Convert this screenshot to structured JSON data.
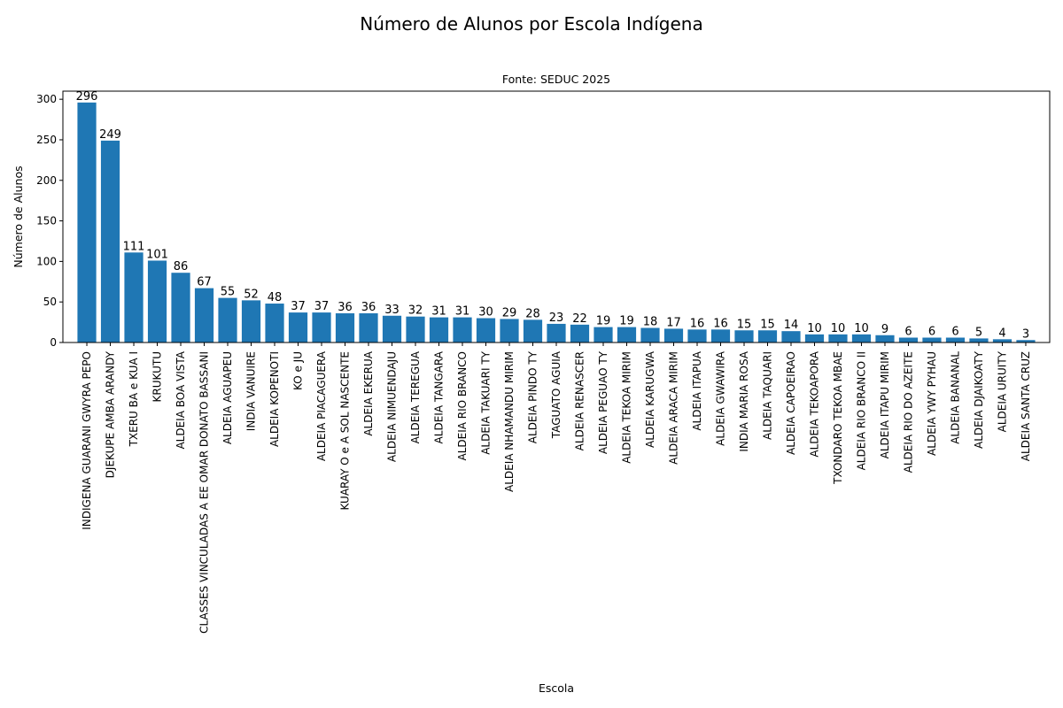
{
  "chart_data": {
    "type": "bar",
    "title": "Número de Alunos por Escola Indígena",
    "subtitle": "Fonte: SEDUC 2025",
    "xlabel": "Escola",
    "ylabel": "Número de Alunos",
    "ylim": [
      0,
      310
    ],
    "yticks": [
      0,
      50,
      100,
      150,
      200,
      250,
      300
    ],
    "grid": false,
    "bar_color": "#1f77b4",
    "categories": [
      "INDIGENA GUARANI GWYRA PEPO",
      "DJEKUPE AMBA ARANDY",
      "TXERU BA  e KUA  I",
      "KRUKUTU",
      "ALDEIA BOA VISTA",
      "CLASSES VINCULADAS A EE OMAR DONATO BASSANI",
      "ALDEIA AGUAPEU",
      "INDIA VANUIRE",
      "ALDEIA KOPENOTI",
      "KO e JU",
      "ALDEIA PIACAGUERA",
      "KUARAY O e A SOL NASCENTE",
      "ALDEIA EKERUA",
      "ALDEIA NIMUENDAJU",
      "ALDEIA TEREGUA",
      "ALDEIA TANGARA",
      "ALDEIA RIO BRANCO",
      "ALDEIA TAKUARI TY",
      "ALDEIA NHAMANDU MIRIM",
      "ALDEIA PINDO TY",
      "TAGUATO AGUIA",
      "ALDEIA RENASCER",
      "ALDEIA PEGUAO TY",
      "ALDEIA TEKOA MIRIM",
      "ALDEIA KARUGWA",
      "ALDEIA ARACA MIRIM",
      "ALDEIA ITAPUA",
      "ALDEIA GWAWIRA",
      "INDIA MARIA ROSA",
      "ALDEIA TAQUARI",
      "ALDEIA CAPOEIRAO",
      "ALDEIA TEKOAPORA",
      "TXONDARO TEKOA  MBAE",
      "ALDEIA RIO BRANCO II",
      "ALDEIA ITAPU MIRIM",
      "ALDEIA RIO DO AZEITE",
      "ALDEIA YWY PYHAU",
      "ALDEIA BANANAL",
      "ALDEIA DJAIKOATY",
      "ALDEIA URUITY",
      "ALDEIA SANTA CRUZ"
    ],
    "values": [
      296,
      249,
      111,
      101,
      86,
      67,
      55,
      52,
      48,
      37,
      37,
      36,
      36,
      33,
      32,
      31,
      31,
      30,
      29,
      28,
      23,
      22,
      19,
      19,
      18,
      17,
      16,
      16,
      15,
      15,
      14,
      10,
      10,
      10,
      9,
      6,
      6,
      6,
      5,
      4,
      3
    ]
  }
}
